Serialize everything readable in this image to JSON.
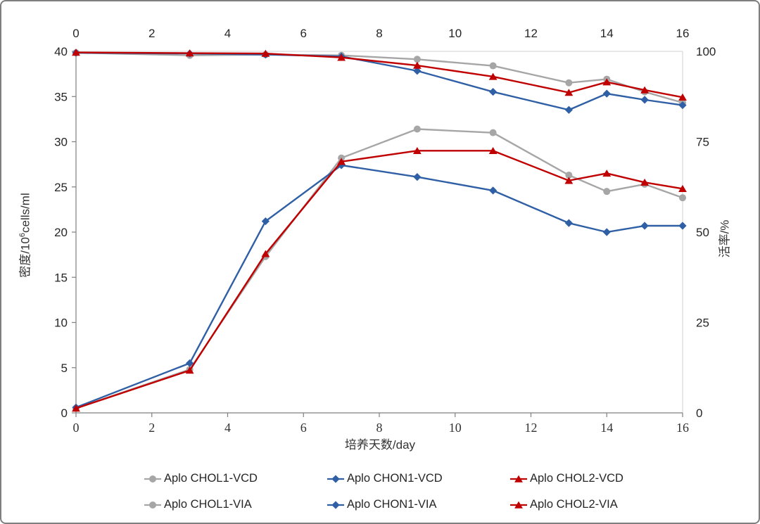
{
  "chart_data": {
    "type": "line",
    "title": "",
    "xlabel": "培养天数/day",
    "ylabel_left": "密度/10⁶cells/ml",
    "ylabel_left_parts": {
      "prefix": "密度/10",
      "sup": "6",
      "suffix": "cells/ml"
    },
    "ylabel_right": "活率/%",
    "x": [
      0,
      3,
      5,
      7,
      9,
      11,
      13,
      14,
      15,
      16
    ],
    "x_axis": {
      "min": 0,
      "max": 16,
      "tick_step": 2,
      "tick_labels": [
        "0",
        "2",
        "4",
        "6",
        "8",
        "10",
        "12",
        "14",
        "16"
      ],
      "labels_on_top": true,
      "labels_on_bottom": true
    },
    "y_axis_left": {
      "min": 0,
      "max": 40,
      "tick_step": 5,
      "tick_labels": [
        "0",
        "5",
        "10",
        "15",
        "20",
        "25",
        "30",
        "35",
        "40"
      ]
    },
    "y_axis_right": {
      "min": 0,
      "max": 100,
      "tick_step": 25,
      "tick_labels": [
        "0",
        "25",
        "50",
        "75",
        "100"
      ]
    },
    "grid": "single horizontal gridline at left-axis 40 / right-axis 100",
    "legend": {
      "position": "bottom",
      "rows": 2,
      "columns": 3
    },
    "series": [
      {
        "name": "Aplo CHOL1-VCD",
        "axis": "left",
        "color": "#a6a6a6",
        "marker": "circle",
        "values": [
          0.5,
          4.8,
          17.3,
          28.2,
          31.4,
          31.0,
          26.3,
          24.5,
          25.3,
          23.8
        ]
      },
      {
        "name": "Aplo CHON1-VCD",
        "axis": "left",
        "color": "#2f5fa5",
        "marker": "diamond",
        "values": [
          0.6,
          5.5,
          21.2,
          27.4,
          26.1,
          24.6,
          21.0,
          20.0,
          20.7,
          20.7
        ]
      },
      {
        "name": "Aplo CHOL2-VCD",
        "axis": "left",
        "color": "#c00000",
        "marker": "triangle",
        "values": [
          0.5,
          4.7,
          17.6,
          27.8,
          29.0,
          29.0,
          25.7,
          26.5,
          25.5,
          24.8
        ]
      },
      {
        "name": "Aplo CHOL1-VIA",
        "axis": "right",
        "color": "#a6a6a6",
        "marker": "circle",
        "values": [
          99.6,
          98.9,
          99.1,
          98.9,
          97.8,
          96.0,
          91.3,
          92.3,
          88.8,
          85.8
        ]
      },
      {
        "name": "Aplo CHON1-VIA",
        "axis": "right",
        "color": "#2f5fa5",
        "marker": "diamond",
        "values": [
          99.6,
          99.4,
          99.1,
          98.6,
          94.6,
          88.8,
          83.8,
          88.3,
          86.6,
          85.1
        ]
      },
      {
        "name": "Aplo CHOL2-VIA",
        "axis": "right",
        "color": "#c00000",
        "marker": "triangle",
        "values": [
          99.7,
          99.5,
          99.4,
          98.3,
          96.1,
          93.0,
          88.6,
          91.5,
          89.3,
          87.3
        ]
      }
    ],
    "style": {
      "axis_color": "#7f7f7f",
      "gridline_color": "#d9d9d9",
      "tick_text_color": "#262626",
      "background": "#ffffff",
      "frame_border_color": "#7f7f7f"
    }
  }
}
